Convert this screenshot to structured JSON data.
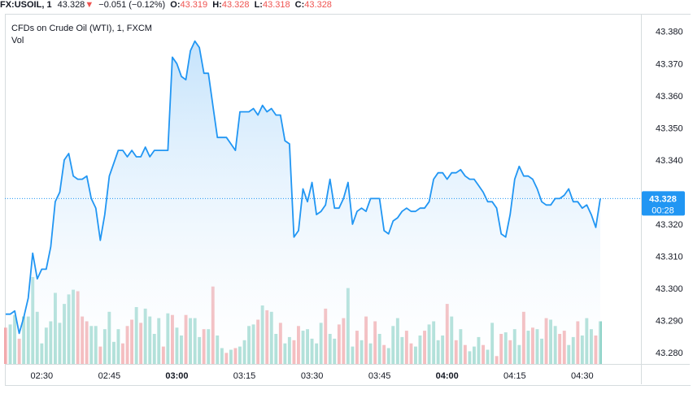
{
  "header": {
    "symbol": "FX:USOIL",
    "interval": "1",
    "last": "43.328",
    "arrow": "▼",
    "change": "−0.051 (−0.12%)",
    "o_label": "O:",
    "o_value": "43.319",
    "h_label": "H:",
    "h_value": "43.328",
    "l_label": "L:",
    "l_value": "43.318",
    "c_label": "C:",
    "c_value": "43.328"
  },
  "legend": {
    "title": "CFDs on Crude Oil (WTI), 1, FXCM",
    "volume_label": "Vol"
  },
  "colors": {
    "line": "#2196f3",
    "area_top": "#bfe0fb",
    "up_volume": "#8fd3c8",
    "down_volume": "#f0a0a3",
    "down_text": "#ef5350",
    "price_label_bg": "#2196f3"
  },
  "chart_data": {
    "type": "area",
    "title": "CFDs on Crude Oil (WTI), 1, FXCM",
    "x_ticks": [
      "02:30",
      "02:45",
      "03:00",
      "03:15",
      "03:30",
      "03:45",
      "04:00",
      "04:15",
      "04:30"
    ],
    "x_ticks_bold": [
      "03:00",
      "04:00"
    ],
    "y_ticks": [
      "43.380",
      "43.370",
      "43.360",
      "43.350",
      "43.340",
      "43.320",
      "43.310",
      "43.300",
      "43.290",
      "43.280"
    ],
    "ylim": [
      43.2765,
      43.3855
    ],
    "last_price": "43.328",
    "last_price_value": 43.328,
    "countdown": "00:28",
    "grid": false,
    "price": [
      43.292,
      43.292,
      43.293,
      43.286,
      43.291,
      43.297,
      43.311,
      43.303,
      43.306,
      43.306,
      43.313,
      43.327,
      43.33,
      43.34,
      43.342,
      43.335,
      43.334,
      43.334,
      43.335,
      43.328,
      43.325,
      43.315,
      43.323,
      43.335,
      43.339,
      43.343,
      43.343,
      43.341,
      43.343,
      43.341,
      43.341,
      43.344,
      43.341,
      43.343,
      43.343,
      43.343,
      43.343,
      43.372,
      43.37,
      43.366,
      43.365,
      43.374,
      43.377,
      43.375,
      43.367,
      43.367,
      43.357,
      43.347,
      43.347,
      43.347,
      43.345,
      43.343,
      43.355,
      43.355,
      43.355,
      43.356,
      43.354,
      43.357,
      43.355,
      43.356,
      43.354,
      43.354,
      43.346,
      43.345,
      43.316,
      43.318,
      43.331,
      43.327,
      43.333,
      43.323,
      43.324,
      43.326,
      43.334,
      43.325,
      43.325,
      43.328,
      43.333,
      43.32,
      43.324,
      43.325,
      43.324,
      43.328,
      43.328,
      43.328,
      43.318,
      43.317,
      43.321,
      43.322,
      43.324,
      43.325,
      43.324,
      43.324,
      43.325,
      43.325,
      43.327,
      43.334,
      43.336,
      43.336,
      43.334,
      43.336,
      43.336,
      43.337,
      43.335,
      43.334,
      43.334,
      43.332,
      43.33,
      43.327,
      43.327,
      43.325,
      43.317,
      43.316,
      43.323,
      43.334,
      43.338,
      43.335,
      43.335,
      43.334,
      43.331,
      43.327,
      43.326,
      43.326,
      43.328,
      43.328,
      43.329,
      43.331,
      43.327,
      43.327,
      43.325,
      43.326,
      43.323,
      43.319,
      43.328
    ],
    "volume": [
      2.3,
      2.5,
      3.1,
      1.6,
      3.0,
      3.0,
      5.5,
      3.3,
      1.3,
      2.3,
      2.7,
      4.5,
      2.6,
      3.8,
      4.4,
      4.7,
      4.6,
      3.0,
      2.7,
      2.4,
      2.4,
      1.1,
      2.2,
      3.3,
      1.4,
      2.2,
      1.3,
      2.4,
      2.8,
      3.6,
      2.6,
      3.5,
      3.0,
      1.9,
      2.9,
      1.1,
      3.2,
      3.1,
      2.3,
      1.8,
      3.1,
      2.9,
      2.9,
      1.7,
      2.2,
      2.2,
      4.9,
      1.8,
      1.0,
      0.7,
      0.9,
      1.0,
      1.1,
      1.5,
      2.4,
      2.5,
      2.8,
      3.7,
      3.4,
      3.3,
      1.9,
      2.6,
      1.3,
      1.7,
      1.5,
      2.4,
      2.1,
      2.2,
      1.6,
      1.3,
      2.6,
      3.5,
      1.9,
      1.6,
      2.5,
      2.9,
      4.8,
      1.1,
      2.1,
      1.5,
      3.0,
      1.3,
      2.7,
      1.9,
      1.2,
      1.0,
      2.4,
      2.9,
      1.7,
      2.1,
      1.3,
      1.1,
      1.8,
      2.1,
      2.5,
      2.7,
      1.5,
      1.8,
      3.8,
      3.0,
      1.5,
      2.2,
      1.2,
      0.8,
      1.1,
      1.7,
      1.2,
      0.9,
      2.6,
      0.5,
      1.9,
      2.0,
      1.5,
      2.2,
      1.2,
      3.3,
      2.1,
      2.3,
      2.2,
      1.6,
      2.9,
      2.8,
      2.4,
      1.9,
      2.1,
      1.2,
      1.7,
      2.7,
      1.8,
      2.9,
      2.2,
      1.8,
      2.7
    ],
    "volume_direction": [
      "down",
      "up",
      "up",
      "down",
      "up",
      "up",
      "up",
      "up",
      "up",
      "up",
      "up",
      "up",
      "up",
      "up",
      "up",
      "up",
      "down",
      "down",
      "down",
      "up",
      "up",
      "down",
      "up",
      "up",
      "up",
      "up",
      "down",
      "down",
      "down",
      "up",
      "down",
      "up",
      "up",
      "up",
      "up",
      "down",
      "up",
      "down",
      "up",
      "up",
      "down",
      "up",
      "up",
      "up",
      "down",
      "up",
      "down",
      "up",
      "up",
      "down",
      "up",
      "down",
      "up",
      "up",
      "up",
      "up",
      "down",
      "up",
      "down",
      "up",
      "up",
      "down",
      "up",
      "up",
      "down",
      "down",
      "up",
      "up",
      "up",
      "up",
      "up",
      "down",
      "up",
      "up",
      "down",
      "down",
      "up",
      "up",
      "down",
      "up",
      "down",
      "up",
      "down",
      "up",
      "down",
      "up",
      "up",
      "up",
      "up",
      "down",
      "down",
      "up",
      "up",
      "down",
      "up",
      "up",
      "up",
      "up",
      "down",
      "up",
      "down",
      "up",
      "down",
      "up",
      "up",
      "up",
      "down",
      "up",
      "up",
      "down",
      "down",
      "up",
      "down",
      "up",
      "up",
      "down",
      "up",
      "down",
      "up",
      "up",
      "down",
      "up",
      "up",
      "down",
      "down",
      "up",
      "up",
      "down",
      "up",
      "up",
      "up",
      "down",
      "up",
      "down",
      "up"
    ]
  }
}
